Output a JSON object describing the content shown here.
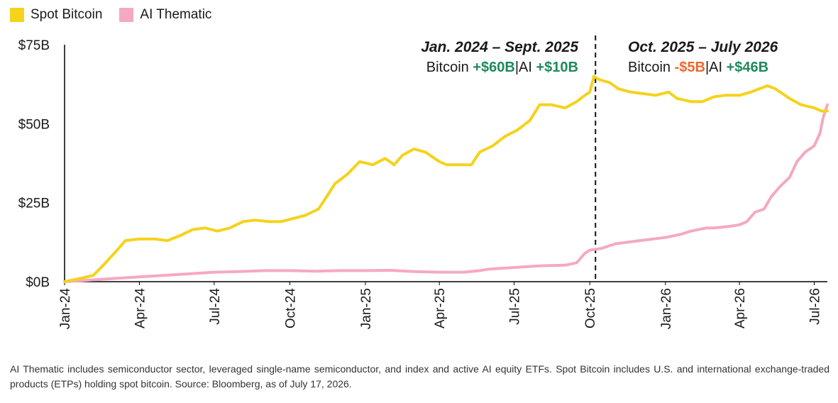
{
  "colors": {
    "bitcoin": "#f5d21c",
    "ai": "#f5a9c0",
    "positive": "#1f8a5b",
    "negative": "#f0662f",
    "axis": "#000000"
  },
  "legend": [
    {
      "label": "Spot Bitcoin",
      "color": "#f5d21c"
    },
    {
      "label": "AI Thematic",
      "color": "#f5a9c0"
    }
  ],
  "annotations": {
    "left": {
      "title": "Jan. 2024 – Sept. 2025",
      "prefix": "Bitcoin ",
      "btc": "+$60B",
      "sep": "|AI ",
      "ai": "+$10B"
    },
    "right": {
      "title": "Oct. 2025 – July 2026",
      "prefix": "Bitcoin ",
      "btc": "-$5B",
      "sep": "|AI ",
      "ai": "+$46B"
    }
  },
  "footnote": "AI Thematic includes semiconductor sector, leveraged single-name semiconductor, and index and active AI equity ETFs. Spot Bitcoin includes U.S. and international exchange-traded products (ETPs) holding spot bitcoin. Source: Bloomberg, as of July 17, 2026.",
  "chart_data": {
    "type": "line",
    "title": "",
    "xlabel": "",
    "ylabel": "",
    "ylim": [
      0,
      75
    ],
    "y_ticks": [
      {
        "value": 0,
        "label": "$0B"
      },
      {
        "value": 25,
        "label": "$25B"
      },
      {
        "value": 50,
        "label": "$50B"
      },
      {
        "value": 75,
        "label": "$75B"
      }
    ],
    "x_range": [
      "2024-01-01",
      "2026-07-17"
    ],
    "x_ticks": [
      {
        "date": "2024-01-01",
        "label": "Jan-24"
      },
      {
        "date": "2024-04-01",
        "label": "Apr-24"
      },
      {
        "date": "2024-07-01",
        "label": "Jul-24"
      },
      {
        "date": "2024-10-01",
        "label": "Oct-24"
      },
      {
        "date": "2025-01-01",
        "label": "Jan-25"
      },
      {
        "date": "2025-04-01",
        "label": "Apr-25"
      },
      {
        "date": "2025-07-01",
        "label": "Jul-25"
      },
      {
        "date": "2025-10-01",
        "label": "Oct-25"
      },
      {
        "date": "2026-01-01",
        "label": "Jan-26"
      },
      {
        "date": "2026-04-01",
        "label": "Apr-26"
      },
      {
        "date": "2026-07-01",
        "label": "Jul-26"
      }
    ],
    "divider_date": "2025-10-01",
    "grid": false,
    "legend_position": "top-left",
    "series": [
      {
        "name": "Spot Bitcoin",
        "color": "#f5d21c",
        "points": [
          [
            "2024-01-01",
            0
          ],
          [
            "2024-01-20",
            1
          ],
          [
            "2024-02-05",
            2
          ],
          [
            "2024-02-20",
            6
          ],
          [
            "2024-03-05",
            10
          ],
          [
            "2024-03-15",
            13
          ],
          [
            "2024-04-01",
            13.5
          ],
          [
            "2024-04-20",
            13.5
          ],
          [
            "2024-05-05",
            13
          ],
          [
            "2024-05-20",
            14.5
          ],
          [
            "2024-06-05",
            16.5
          ],
          [
            "2024-06-20",
            17
          ],
          [
            "2024-07-05",
            16
          ],
          [
            "2024-07-20",
            17
          ],
          [
            "2024-08-05",
            19
          ],
          [
            "2024-08-20",
            19.5
          ],
          [
            "2024-09-05",
            19
          ],
          [
            "2024-09-20",
            19
          ],
          [
            "2024-10-05",
            20
          ],
          [
            "2024-10-20",
            21
          ],
          [
            "2024-11-05",
            23
          ],
          [
            "2024-11-15",
            27
          ],
          [
            "2024-11-25",
            31
          ],
          [
            "2024-12-10",
            34
          ],
          [
            "2024-12-25",
            38
          ],
          [
            "2025-01-10",
            37
          ],
          [
            "2025-01-25",
            39
          ],
          [
            "2025-02-05",
            37
          ],
          [
            "2025-02-15",
            40
          ],
          [
            "2025-03-01",
            42
          ],
          [
            "2025-03-15",
            41
          ],
          [
            "2025-04-01",
            38
          ],
          [
            "2025-04-10",
            37
          ],
          [
            "2025-04-25",
            37
          ],
          [
            "2025-05-10",
            37
          ],
          [
            "2025-05-20",
            41
          ],
          [
            "2025-06-05",
            43
          ],
          [
            "2025-06-20",
            46
          ],
          [
            "2025-07-05",
            48
          ],
          [
            "2025-07-20",
            51
          ],
          [
            "2025-08-01",
            56
          ],
          [
            "2025-08-15",
            56
          ],
          [
            "2025-09-01",
            55
          ],
          [
            "2025-09-15",
            57
          ],
          [
            "2025-09-25",
            59
          ],
          [
            "2025-10-01",
            60
          ],
          [
            "2025-10-06",
            65
          ],
          [
            "2025-10-12",
            64
          ],
          [
            "2025-10-25",
            63
          ],
          [
            "2025-11-05",
            61
          ],
          [
            "2025-11-20",
            60
          ],
          [
            "2025-12-05",
            59.5
          ],
          [
            "2025-12-20",
            59
          ],
          [
            "2026-01-05",
            60
          ],
          [
            "2026-01-15",
            58
          ],
          [
            "2026-02-01",
            57
          ],
          [
            "2026-02-15",
            57
          ],
          [
            "2026-03-01",
            58.5
          ],
          [
            "2026-03-15",
            59
          ],
          [
            "2026-04-01",
            59
          ],
          [
            "2026-04-15",
            60
          ],
          [
            "2026-04-25",
            61
          ],
          [
            "2026-05-05",
            62
          ],
          [
            "2026-05-15",
            61
          ],
          [
            "2026-06-01",
            58
          ],
          [
            "2026-06-15",
            56
          ],
          [
            "2026-07-01",
            55
          ],
          [
            "2026-07-10",
            54
          ],
          [
            "2026-07-17",
            54
          ]
        ]
      },
      {
        "name": "AI Thematic",
        "color": "#f5a9c0",
        "points": [
          [
            "2024-01-01",
            0
          ],
          [
            "2024-02-01",
            0.5
          ],
          [
            "2024-03-01",
            1
          ],
          [
            "2024-04-01",
            1.5
          ],
          [
            "2024-05-01",
            2
          ],
          [
            "2024-06-01",
            2.5
          ],
          [
            "2024-07-01",
            3
          ],
          [
            "2024-08-01",
            3.2
          ],
          [
            "2024-09-01",
            3.5
          ],
          [
            "2024-10-01",
            3.5
          ],
          [
            "2024-11-01",
            3.3
          ],
          [
            "2024-12-01",
            3.5
          ],
          [
            "2025-01-01",
            3.5
          ],
          [
            "2025-02-01",
            3.6
          ],
          [
            "2025-03-01",
            3.2
          ],
          [
            "2025-04-01",
            3.0
          ],
          [
            "2025-05-01",
            3.0
          ],
          [
            "2025-05-20",
            3.5
          ],
          [
            "2025-06-01",
            4
          ],
          [
            "2025-07-01",
            4.5
          ],
          [
            "2025-08-01",
            5
          ],
          [
            "2025-09-01",
            5.2
          ],
          [
            "2025-09-15",
            6
          ],
          [
            "2025-09-25",
            9
          ],
          [
            "2025-10-01",
            10
          ],
          [
            "2025-10-15",
            10.5
          ],
          [
            "2025-11-01",
            12
          ],
          [
            "2025-12-01",
            13
          ],
          [
            "2026-01-01",
            14
          ],
          [
            "2026-01-20",
            15
          ],
          [
            "2026-02-01",
            16
          ],
          [
            "2026-02-20",
            17
          ],
          [
            "2026-03-01",
            17
          ],
          [
            "2026-03-20",
            17.5
          ],
          [
            "2026-04-01",
            18
          ],
          [
            "2026-04-10",
            19
          ],
          [
            "2026-04-20",
            22
          ],
          [
            "2026-05-01",
            23
          ],
          [
            "2026-05-10",
            27
          ],
          [
            "2026-05-20",
            30
          ],
          [
            "2026-06-01",
            33
          ],
          [
            "2026-06-10",
            38
          ],
          [
            "2026-06-20",
            41
          ],
          [
            "2026-07-01",
            43
          ],
          [
            "2026-07-08",
            47
          ],
          [
            "2026-07-12",
            52
          ],
          [
            "2026-07-17",
            56
          ]
        ]
      }
    ]
  }
}
